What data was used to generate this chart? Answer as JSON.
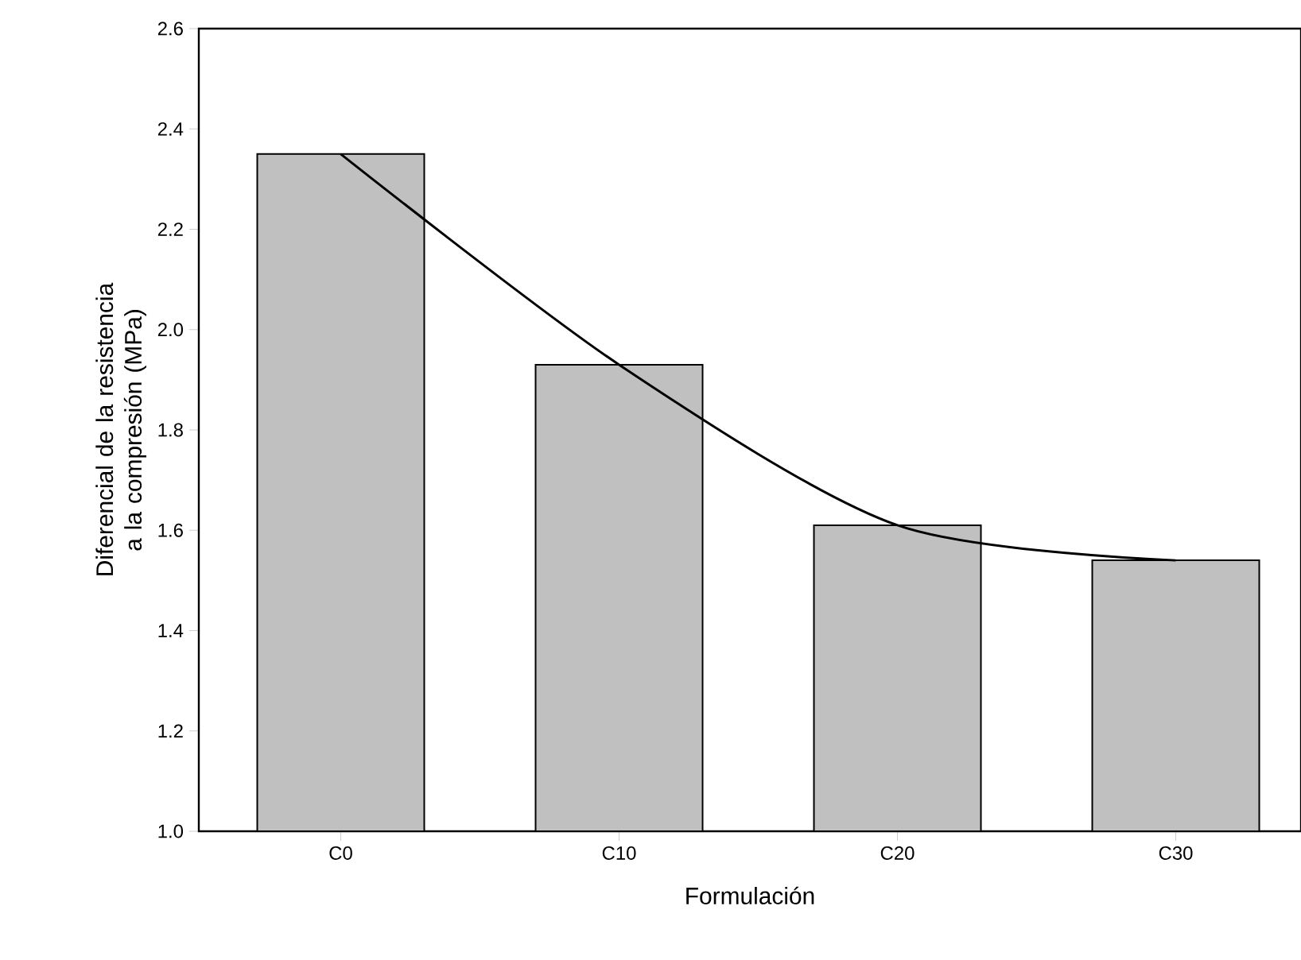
{
  "chart_data": {
    "type": "bar",
    "xlabel": "Formulación",
    "ylabel": "Diferencial de la resistencia a la compresión (MPa)",
    "categories": [
      "C0",
      "C10",
      "C20",
      "C30"
    ],
    "series": [
      {
        "color": "#c0c0c0",
        "values": [
          2.35,
          1.93,
          1.61,
          1.54
        ]
      },
      {
        "type": "line",
        "color": "#000000",
        "values": [
          2.35,
          1.93,
          1.61,
          1.54
        ],
        "marker": "none",
        "line_style": "solid"
      }
    ],
    "ylim": [
      1.0,
      2.6
    ],
    "yticks": [
      {
        "value": 1.0,
        "label": "1.0"
      },
      1.2,
      1.4,
      1.6,
      1.8,
      {
        "value": 2.0,
        "label": "2.0"
      },
      2.2,
      2.4,
      2.6
    ],
    "grid": false
  }
}
